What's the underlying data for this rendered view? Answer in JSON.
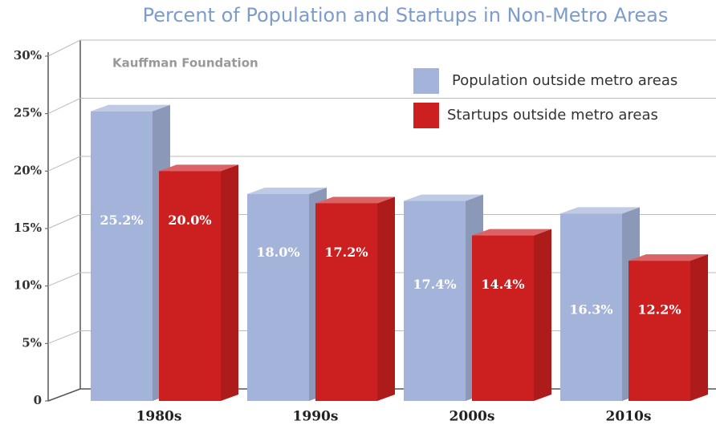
{
  "chart_data": {
    "type": "bar3d",
    "title": "Percent of Population and Startups in Non-Metro Areas",
    "annotation": "Kauffman Foundation",
    "categories": [
      "1980s",
      "1990s",
      "2000s",
      "2010s"
    ],
    "series": [
      {
        "name": "Population outside metro areas",
        "color": "#a3b3d9",
        "values": [
          25.2,
          18.0,
          17.4,
          16.3
        ],
        "value_labels": [
          "25.2%",
          "18.0%",
          "17.4%",
          "16.3%"
        ]
      },
      {
        "name": "Startups outside metro areas",
        "color": "#cc2020",
        "values": [
          20.0,
          17.2,
          14.4,
          12.2
        ],
        "value_labels": [
          "20.0%",
          "17.2%",
          "14.4%",
          "12.2%"
        ]
      }
    ],
    "ylim": [
      0,
      30
    ],
    "yticks": [
      0,
      {
        "value": 5,
        "label": "5%"
      },
      {
        "value": 10,
        "label": "10%"
      },
      {
        "value": 15,
        "label": "15%"
      },
      {
        "value": 20,
        "label": "20%"
      },
      {
        "value": 25,
        "label": "25%"
      },
      {
        "value": 30,
        "label": "30%"
      }
    ],
    "grid": true,
    "legend": "top-right"
  }
}
